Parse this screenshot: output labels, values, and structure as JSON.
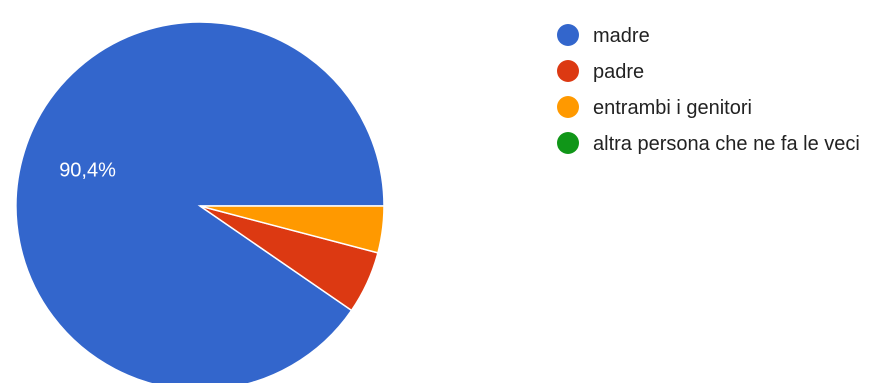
{
  "chart_data": {
    "type": "pie",
    "categories": [
      "madre",
      "padre",
      "entrambi i genitori",
      "altra persona che ne fa le veci"
    ],
    "values": [
      90.4,
      5.5,
      4.1,
      0
    ],
    "colors": [
      "#3366cc",
      "#dc3912",
      "#ff9900",
      "#109618"
    ],
    "data_labels": [
      "90,4%",
      "",
      "",
      ""
    ],
    "start": "3 o'clock",
    "direction": "counter-clockwise",
    "legend_position": "right"
  }
}
